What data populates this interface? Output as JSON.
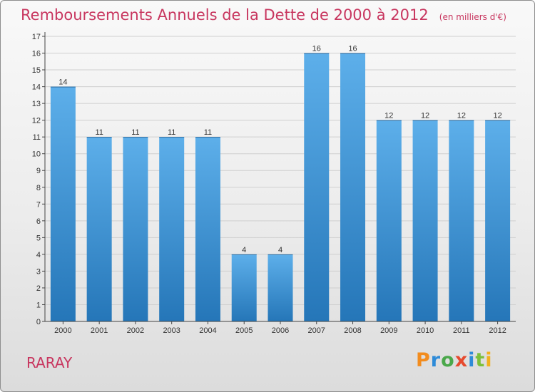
{
  "header": {
    "title": "Remboursements Annuels de la Dette de 2000 à 2012",
    "subtitle": "(en milliers d'€)"
  },
  "footer": {
    "commune": "RARAY",
    "logo_text": "Proxiti",
    "logo_colors": [
      "#f28c1e",
      "#2e8bd8",
      "#4aa84a",
      "#e64a2e",
      "#2e8bd8",
      "#7cbf3a",
      "#f2b01e"
    ]
  },
  "colors": {
    "title": "#c8365f",
    "bar_top": "#5dafea",
    "bar_bottom": "#2576b8",
    "grid": "#cfcfcf",
    "axis": "#444444",
    "label": "#333333"
  },
  "chart_data": {
    "type": "bar",
    "categories": [
      "2000",
      "2001",
      "2002",
      "2003",
      "2004",
      "2005",
      "2006",
      "2007",
      "2008",
      "2009",
      "2010",
      "2011",
      "2012"
    ],
    "values": [
      14,
      11,
      11,
      11,
      11,
      4,
      4,
      16,
      16,
      12,
      12,
      12,
      12
    ],
    "data_labels": [
      "14",
      "11",
      "11",
      "11",
      "11",
      "4",
      "4",
      "16",
      "16",
      "12",
      "12",
      "12",
      "12"
    ],
    "title": "Remboursements Annuels de la Dette de 2000 à 2012",
    "ylim": [
      0,
      17
    ],
    "yticks": [
      0,
      1,
      2,
      3,
      4,
      5,
      6,
      7,
      8,
      9,
      10,
      11,
      12,
      13,
      14,
      15,
      16,
      17
    ],
    "grid": true,
    "legend": "none"
  }
}
